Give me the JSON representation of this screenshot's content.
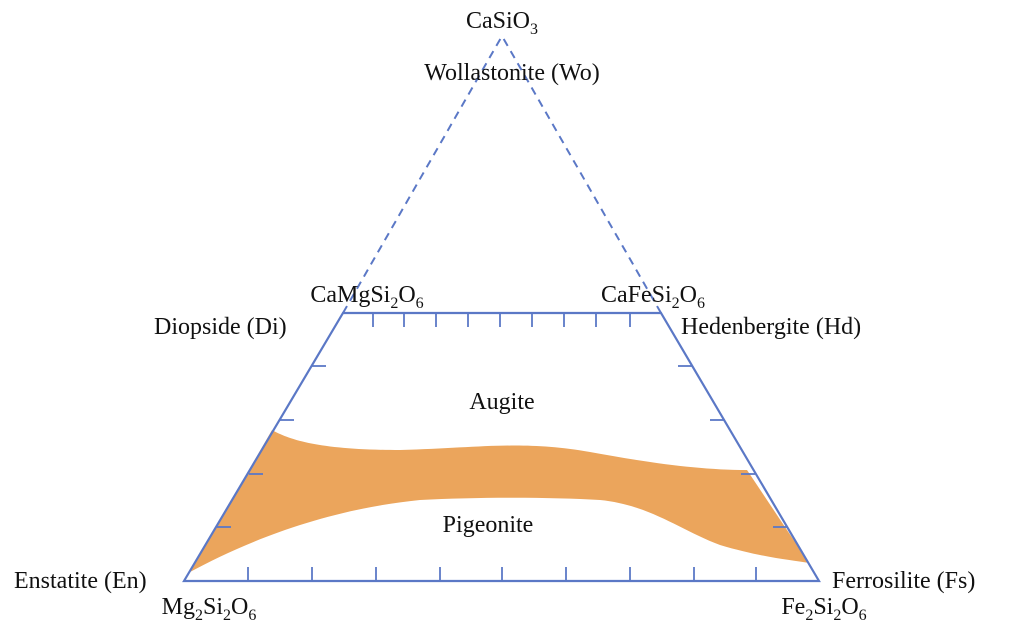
{
  "colors": {
    "outline": "#5b78c6",
    "miscibility_band": "#eba55c",
    "text": "#111111",
    "background": "#ffffff"
  },
  "apex": {
    "formula": {
      "el1": "CaSiO",
      "n1": "3"
    },
    "name": "Wollastonite (Wo)"
  },
  "corners": {
    "diopside": {
      "formula": {
        "el1": "CaMgSi",
        "n1": "2",
        "el2": "O",
        "n2": "6"
      },
      "name": "Diopside (Di)"
    },
    "hedenbergite": {
      "formula": {
        "el1": "CaFeSi",
        "n1": "2",
        "el2": "O",
        "n2": "6"
      },
      "name": "Hedenbergite (Hd)"
    },
    "enstatite": {
      "formula": {
        "el1": "Mg",
        "n1": "2",
        "el2": "Si",
        "n2": "2",
        "el3": "O",
        "n3": "6"
      },
      "name": "Enstatite (En)"
    },
    "ferrosilite": {
      "formula": {
        "el1": "Fe",
        "n1": "2",
        "el2": "Si",
        "n2": "2",
        "el3": "O",
        "n3": "6"
      },
      "name": "Ferrosilite (Fs)"
    }
  },
  "fields": {
    "upper": "Augite",
    "lower": "Pigeonite"
  }
}
